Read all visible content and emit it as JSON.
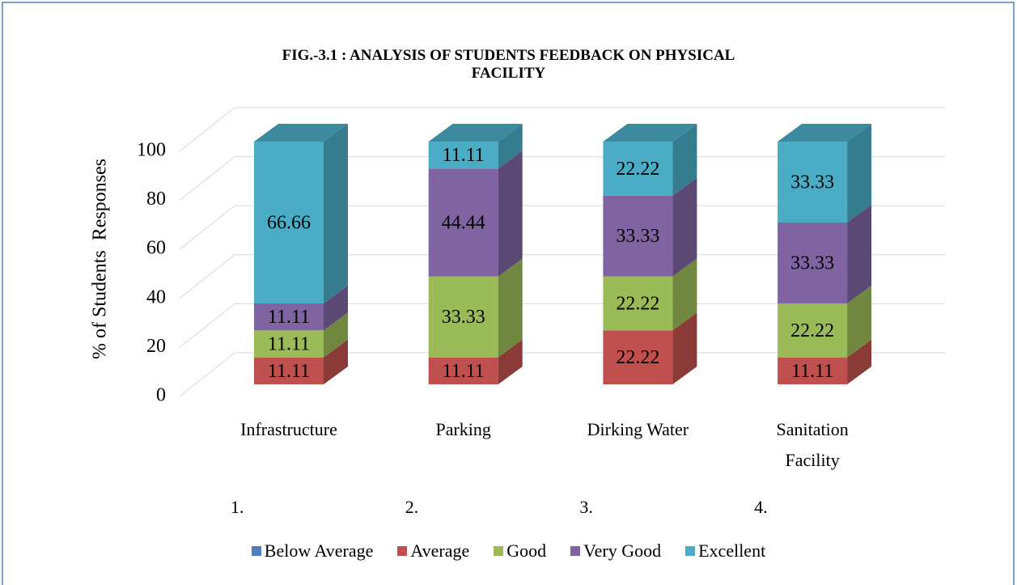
{
  "chart_data": {
    "type": "bar3d_stacked",
    "title": "FIG.-3.1 : ANALYSIS OF STUDENTS FEEDBACK ON PHYSICAL\nFACILITY",
    "y_label": "% of Students  Responses",
    "categories": [
      "Infrastructure",
      "Parking",
      "Dirking Water",
      "Sanitation\nFacility"
    ],
    "category_numbers": [
      "1.",
      "2.",
      "3.",
      "4."
    ],
    "series": [
      {
        "name": "Below Average",
        "color": "#4f81bd",
        "values": [
          0,
          0,
          0,
          0
        ]
      },
      {
        "name": "Average",
        "color": "#c0504d",
        "values": [
          11.11,
          11.11,
          22.22,
          11.11
        ]
      },
      {
        "name": "Good",
        "color": "#9bbb59",
        "values": [
          11.11,
          33.33,
          22.22,
          22.22
        ]
      },
      {
        "name": "Very Good",
        "color": "#8064a2",
        "values": [
          11.11,
          44.44,
          33.33,
          33.33
        ]
      },
      {
        "name": "Excellent",
        "color": "#4bacc6",
        "values": [
          66.66,
          11.11,
          22.22,
          33.33
        ]
      }
    ],
    "ylim": [
      0,
      100
    ],
    "yticks": [
      0,
      20,
      40,
      60,
      80,
      100
    ],
    "grid": true,
    "legend": "bottom"
  }
}
